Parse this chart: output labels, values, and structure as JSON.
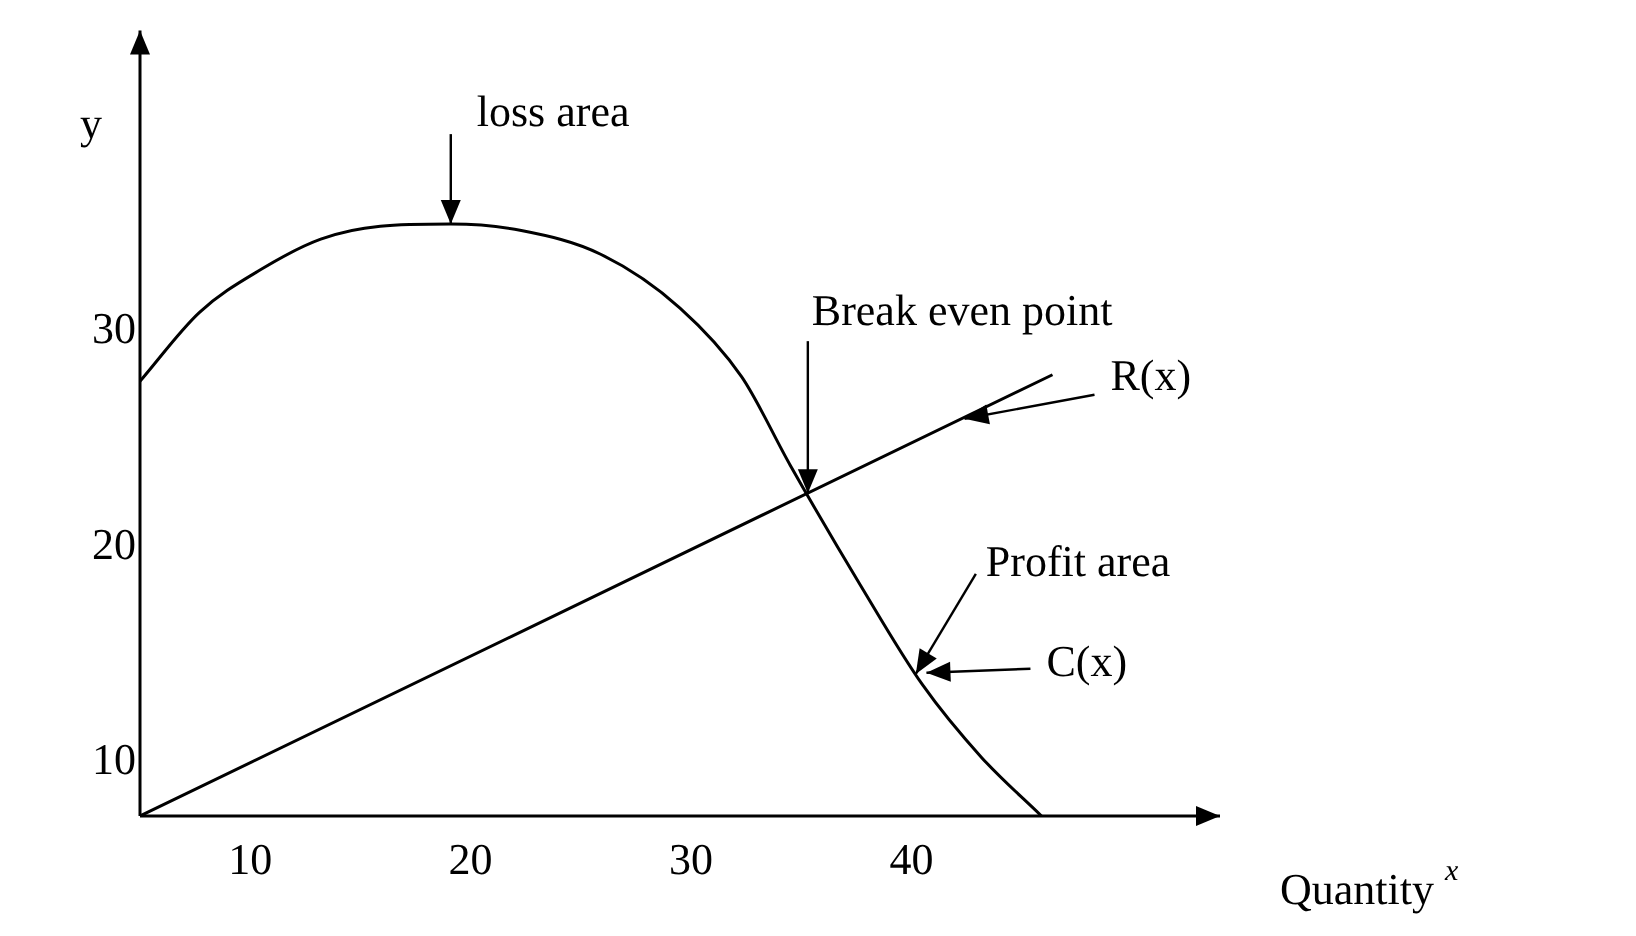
{
  "chart_data": {
    "type": "line",
    "xlabel": "Quantity $^{x}$",
    "ylabel": "y",
    "xlim": [
      5,
      54
    ],
    "ylim": [
      7.5,
      44
    ],
    "xticks": [
      10,
      20,
      30,
      40
    ],
    "yticks": [
      10,
      20,
      30
    ],
    "grid": false,
    "legend": "right",
    "marker": "none",
    "line_style": "solid",
    "series": [
      {
        "name": "R(x)",
        "color": "#000000",
        "x": [
          5,
          46.4
        ],
        "values": [
          7.5,
          28
        ]
      },
      {
        "name": "C(x)",
        "color": "#000000",
        "x": [
          5,
          7.7,
          10.5,
          13.2,
          15.9,
          19.1,
          22.3,
          25.9,
          29.5,
          32.3,
          34.5,
          37.7,
          40.5,
          43.2,
          45.9
        ],
        "values": [
          27.7,
          30.9,
          32.9,
          34.3,
          34.9,
          35,
          34.7,
          33.6,
          31.1,
          27.9,
          23.8,
          18.2,
          13.6,
          10.2,
          7.5
        ]
      }
    ],
    "annotations": [
      {
        "text": "loss area",
        "x": 19.1,
        "y": 35
      },
      {
        "text": "Break even point",
        "x": 35.3,
        "y": 22.5
      },
      {
        "text": "Profit area",
        "x": 40.2,
        "y": 14.1
      }
    ]
  }
}
